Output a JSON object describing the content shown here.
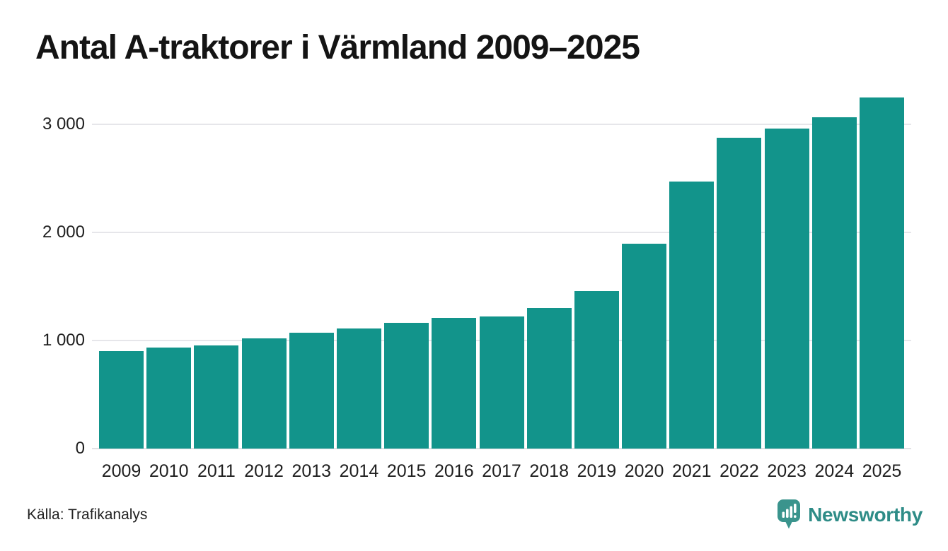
{
  "title": "Antal A-traktorer i Värmland 2009–2025",
  "source": "Källa: Trafikanalys",
  "branding": {
    "wordmark": "Newsworthy",
    "icon": "newsworthy-bubble-chart-icon"
  },
  "colors": {
    "bar": "#12948b",
    "grid": "#e6e6ea",
    "baseline": "#e1e1e4",
    "title_text": "#141414",
    "axis_text": "#1f1f1f",
    "brand_teal": "#2e8c87",
    "logo_bubble": "#3a948d"
  },
  "chart_data": {
    "type": "bar",
    "title": "Antal A-traktorer i Värmland 2009–2025",
    "categories": [
      "2009",
      "2010",
      "2011",
      "2012",
      "2013",
      "2014",
      "2015",
      "2016",
      "2017",
      "2018",
      "2019",
      "2020",
      "2021",
      "2022",
      "2023",
      "2024",
      "2025"
    ],
    "values": [
      900,
      935,
      955,
      1020,
      1070,
      1115,
      1165,
      1210,
      1220,
      1300,
      1460,
      1900,
      2475,
      2880,
      2965,
      3065,
      3250
    ],
    "xlabel": "",
    "ylabel": "",
    "ylim": [
      0,
      3290
    ],
    "yticks": [
      0,
      1000,
      2000,
      3000
    ],
    "ytick_labels": [
      "0",
      "1 000",
      "2 000",
      "3 000"
    ],
    "grid": "horizontal-only",
    "legend": "none",
    "bar_color": "#12948b",
    "source": "Källa: Trafikanalys"
  }
}
